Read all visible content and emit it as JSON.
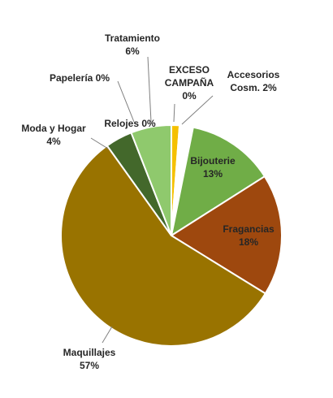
{
  "chart_data": {
    "type": "pie",
    "title": "",
    "slices": [
      {
        "name": "EXCESO CAMPAÑA",
        "value": 0,
        "pct_label": "0%",
        "color": "#f5c000"
      },
      {
        "name": "Accesorios Cosm.",
        "value": 2,
        "pct_label": "2%",
        "color": "#ffffff"
      },
      {
        "name": "Bijouterie",
        "value": 13,
        "pct_label": "13%",
        "color": "#70ad47"
      },
      {
        "name": "Fragancias",
        "value": 18,
        "pct_label": "18%",
        "color": "#9e480e"
      },
      {
        "name": "Maquillajes",
        "value": 57,
        "pct_label": "57%",
        "color": "#997300"
      },
      {
        "name": "Moda y Hogar",
        "value": 4,
        "pct_label": "4%",
        "color": "#43682b"
      },
      {
        "name": "Papelería",
        "value": 0,
        "pct_label": "0%",
        "color": "#636363"
      },
      {
        "name": "Relojes",
        "value": 0,
        "pct_label": "0%",
        "color": "#264478"
      },
      {
        "name": "Tratamiento",
        "value": 6,
        "pct_label": "6%",
        "color": "#8fc96d"
      }
    ],
    "legend": "none",
    "data_labels": "category name and percentage"
  }
}
